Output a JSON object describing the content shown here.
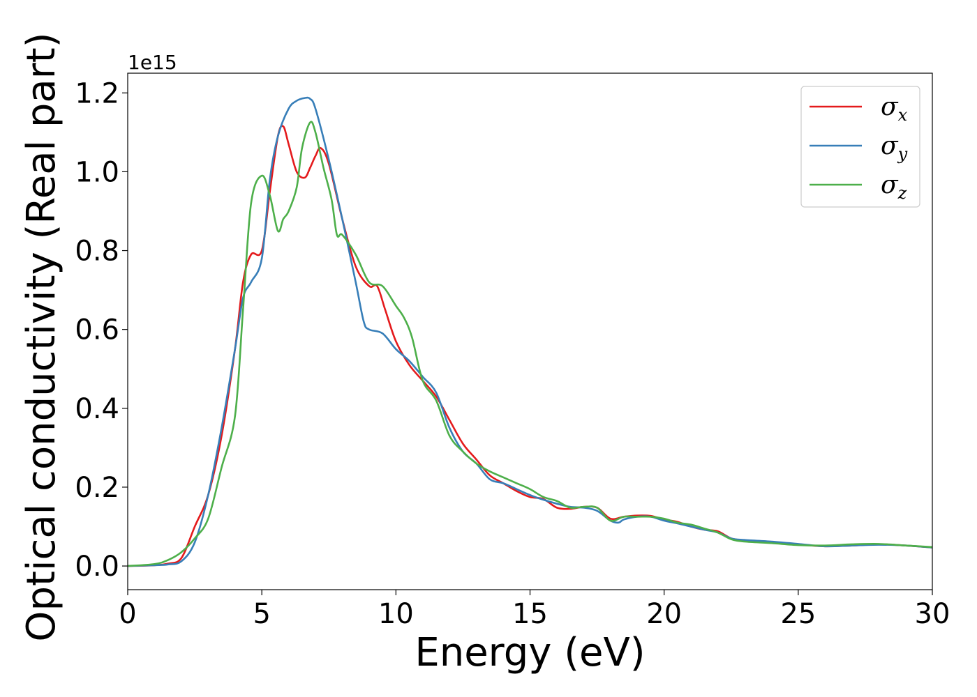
{
  "chart_data": {
    "type": "line",
    "xlabel": "Energy (eV)",
    "ylabel": "Optical conductivity (Real part)",
    "y_offset_label": "1e15",
    "xlim": [
      0,
      30
    ],
    "ylim": [
      -0.06,
      1.25
    ],
    "xticks": [
      0,
      5,
      10,
      15,
      20,
      25,
      30
    ],
    "xtick_labels": [
      "0",
      "5",
      "10",
      "15",
      "20",
      "25",
      "30"
    ],
    "yticks": [
      0.0,
      0.2,
      0.4,
      0.6,
      0.8,
      1.0,
      1.2
    ],
    "ytick_labels": [
      "0.0",
      "0.2",
      "0.4",
      "0.6",
      "0.8",
      "1.0",
      "1.2"
    ],
    "grid": false,
    "legend_position": "top-right",
    "series": [
      {
        "name": "σx",
        "symbol": "σ",
        "subscript": "x",
        "color": "#e41a1c",
        "x": [
          0,
          1,
          1.5,
          2,
          2.5,
          3,
          3.5,
          4,
          4.3,
          4.6,
          5,
          5.3,
          5.6,
          5.8,
          6,
          6.3,
          6.6,
          6.8,
          7,
          7.2,
          7.5,
          8,
          8.5,
          9,
          9.3,
          9.6,
          10,
          10.5,
          11,
          11.5,
          12,
          12.5,
          13,
          13.5,
          14,
          14.5,
          15,
          15.5,
          16,
          16.5,
          17,
          17.5,
          18,
          18.5,
          19,
          19.5,
          20,
          20.5,
          21,
          21.5,
          22,
          22.5,
          23,
          24,
          25,
          26,
          27,
          28,
          29,
          30
        ],
        "values": [
          0.0,
          0.002,
          0.006,
          0.02,
          0.1,
          0.18,
          0.33,
          0.55,
          0.72,
          0.79,
          0.8,
          0.95,
          1.09,
          1.115,
          1.07,
          1.0,
          0.985,
          1.01,
          1.04,
          1.06,
          1.02,
          0.88,
          0.76,
          0.71,
          0.71,
          0.65,
          0.57,
          0.51,
          0.47,
          0.43,
          0.37,
          0.31,
          0.27,
          0.23,
          0.21,
          0.19,
          0.175,
          0.17,
          0.148,
          0.145,
          0.15,
          0.148,
          0.12,
          0.125,
          0.128,
          0.127,
          0.118,
          0.112,
          0.1,
          0.092,
          0.088,
          0.07,
          0.065,
          0.06,
          0.055,
          0.05,
          0.052,
          0.055,
          0.052,
          0.047
        ]
      },
      {
        "name": "σy",
        "symbol": "σ",
        "subscript": "y",
        "color": "#377eb8",
        "x": [
          0,
          1,
          1.5,
          2,
          2.5,
          3,
          3.5,
          4,
          4.3,
          4.6,
          5,
          5.3,
          5.6,
          6,
          6.3,
          6.6,
          6.8,
          7,
          7.5,
          8,
          8.5,
          8.8,
          9,
          9.5,
          10,
          10.5,
          11,
          11.5,
          12,
          12.5,
          13,
          13.5,
          14,
          14.5,
          15,
          15.5,
          16,
          16.5,
          17,
          17.5,
          18,
          18.3,
          18.5,
          19,
          19.5,
          20,
          20.5,
          21,
          21.5,
          22,
          22.5,
          23,
          24,
          25,
          26,
          27,
          28,
          29,
          30
        ],
        "values": [
          0.0,
          0.002,
          0.004,
          0.012,
          0.06,
          0.18,
          0.35,
          0.55,
          0.68,
          0.72,
          0.78,
          0.98,
          1.09,
          1.16,
          1.18,
          1.187,
          1.185,
          1.16,
          1.03,
          0.88,
          0.72,
          0.62,
          0.6,
          0.59,
          0.55,
          0.52,
          0.48,
          0.44,
          0.35,
          0.29,
          0.26,
          0.22,
          0.21,
          0.195,
          0.18,
          0.168,
          0.158,
          0.15,
          0.148,
          0.14,
          0.115,
          0.11,
          0.118,
          0.125,
          0.125,
          0.115,
          0.108,
          0.1,
          0.092,
          0.085,
          0.07,
          0.066,
          0.062,
          0.056,
          0.05,
          0.052,
          0.054,
          0.052,
          0.047
        ]
      },
      {
        "name": "σz",
        "symbol": "σ",
        "subscript": "z",
        "color": "#4daf4a",
        "x": [
          0,
          1,
          1.5,
          2,
          2.5,
          3,
          3.5,
          4,
          4.3,
          4.6,
          5,
          5.3,
          5.6,
          5.8,
          6,
          6.3,
          6.5,
          6.8,
          7,
          7.3,
          7.6,
          7.8,
          8,
          8.5,
          9,
          9.5,
          10,
          10.3,
          10.6,
          11,
          11.5,
          12,
          12.5,
          13,
          13.5,
          14,
          14.5,
          15,
          15.5,
          16,
          16.5,
          17,
          17.5,
          18,
          18.5,
          19,
          19.5,
          20,
          20.5,
          21,
          21.5,
          22,
          22.5,
          23,
          24,
          25,
          26,
          27,
          28,
          29,
          30
        ],
        "values": [
          0.0,
          0.005,
          0.015,
          0.035,
          0.07,
          0.12,
          0.25,
          0.38,
          0.65,
          0.92,
          0.99,
          0.94,
          0.85,
          0.88,
          0.9,
          0.96,
          1.06,
          1.125,
          1.1,
          1.01,
          0.93,
          0.84,
          0.84,
          0.79,
          0.72,
          0.71,
          0.66,
          0.63,
          0.58,
          0.47,
          0.42,
          0.33,
          0.29,
          0.26,
          0.24,
          0.225,
          0.21,
          0.195,
          0.175,
          0.165,
          0.148,
          0.15,
          0.148,
          0.115,
          0.125,
          0.125,
          0.125,
          0.12,
          0.11,
          0.105,
          0.095,
          0.085,
          0.068,
          0.062,
          0.058,
          0.053,
          0.052,
          0.055,
          0.056,
          0.052,
          0.048
        ]
      }
    ]
  }
}
